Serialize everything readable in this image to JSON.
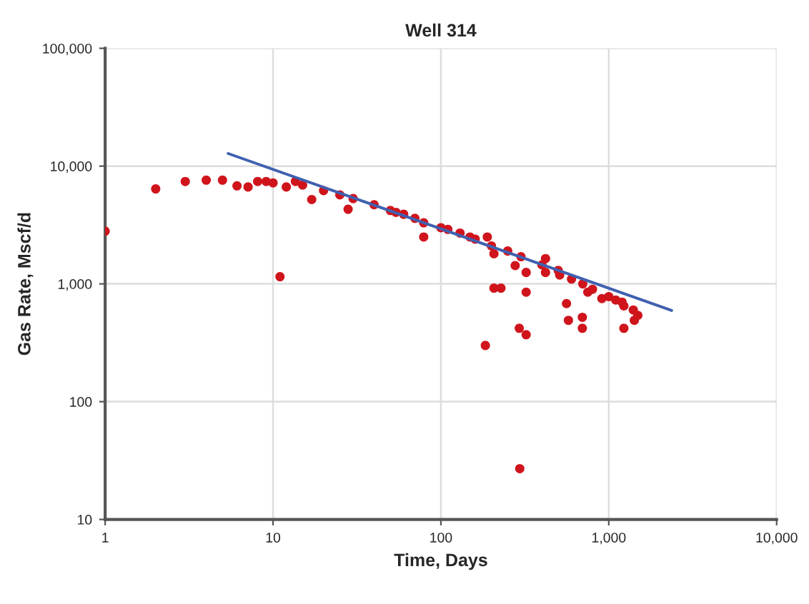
{
  "chart_data": {
    "type": "scatter",
    "title": "Well 314",
    "xlabel": "Time, Days",
    "ylabel": "Gas Rate, Mscf/d",
    "log": "xy",
    "grid": true,
    "xlim": [
      1,
      10000
    ],
    "xticks": [
      1,
      10,
      100,
      {
        "value": 1000,
        "label": "1,000"
      },
      {
        "value": 10000,
        "label": "10,000"
      }
    ],
    "ylim": [
      10,
      100000
    ],
    "yticks": [
      10,
      100,
      {
        "value": 1000,
        "label": "1,000"
      },
      {
        "value": 10000,
        "label": "10,000"
      },
      {
        "value": 100000,
        "label": "100,000"
      }
    ],
    "series": [
      {
        "marker": "circle",
        "color": "#d0141c",
        "x": [
          1,
          2,
          3,
          4,
          5,
          6.1,
          7.1,
          8.1,
          9.1,
          10,
          11,
          12,
          13.6,
          15,
          17,
          20,
          25,
          28,
          30,
          40,
          50,
          54,
          60,
          70,
          79,
          79,
          100,
          110,
          130,
          149,
          160,
          184,
          189,
          200,
          207,
          207,
          228,
          250,
          277,
          293,
          295,
          300,
          322,
          322,
          322,
          400,
          420,
          420,
          500,
          510,
          560,
          575,
          600,
          696,
          696,
          700,
          750,
          800,
          910,
          1000,
          1100,
          1200,
          1230,
          1230,
          1400,
          1420,
          1490
        ],
        "values": [
          2800,
          6400,
          7400,
          7600,
          7600,
          6800,
          6650,
          7400,
          7400,
          7200,
          1150,
          6650,
          7400,
          6900,
          5200,
          6200,
          5700,
          4300,
          5300,
          4700,
          4200,
          4050,
          3900,
          3600,
          2500,
          3300,
          3000,
          2900,
          2700,
          2500,
          2400,
          300,
          2500,
          2100,
          1800,
          920,
          920,
          1900,
          1430,
          420,
          27,
          1700,
          1250,
          850,
          370,
          1450,
          1640,
          1250,
          1300,
          1190,
          680,
          490,
          1100,
          520,
          420,
          1000,
          850,
          900,
          750,
          780,
          730,
          700,
          420,
          650,
          600,
          490,
          540
        ]
      },
      {
        "type": "line",
        "color": "#4060b0",
        "x": [
          5.4,
          2370
        ],
        "values": [
          12800,
          594
        ]
      }
    ]
  }
}
